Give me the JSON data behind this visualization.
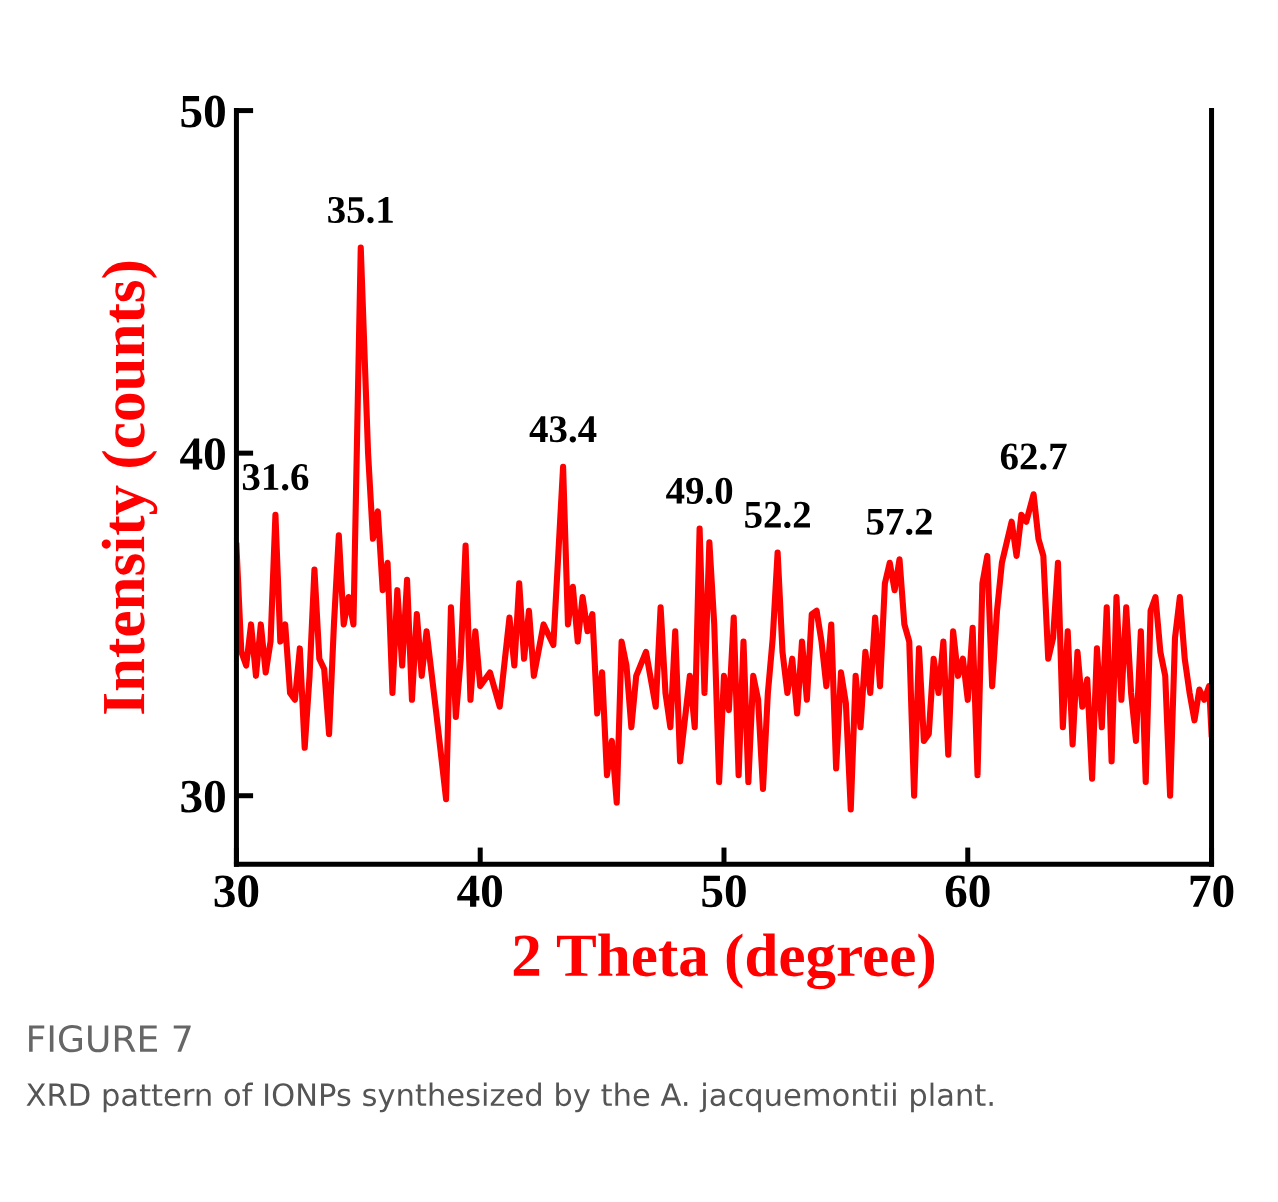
{
  "chart_data": {
    "type": "line",
    "xlabel": "2 Theta (degree)",
    "ylabel": "Intensity (counts)",
    "xlim": [
      30,
      70
    ],
    "ylim": [
      28,
      50
    ],
    "xticks": [
      30,
      40,
      50,
      60,
      70
    ],
    "yticks": [
      30,
      40,
      50
    ],
    "grid": false,
    "marker": "none",
    "line_style": "solid",
    "x": [
      30.0,
      30.2,
      30.4,
      30.6,
      30.8,
      31.0,
      31.2,
      31.4,
      31.6,
      31.8,
      32.0,
      32.2,
      32.4,
      32.6,
      32.8,
      33.0,
      33.2,
      33.4,
      33.6,
      33.8,
      34.0,
      34.2,
      34.4,
      34.6,
      34.8,
      35.1,
      35.4,
      35.6,
      35.8,
      36.0,
      36.2,
      36.4,
      36.6,
      36.8,
      37.0,
      37.2,
      37.4,
      37.6,
      37.8,
      38.0,
      38.2,
      38.6,
      38.8,
      39.0,
      39.2,
      39.4,
      39.6,
      39.8,
      40.0,
      40.4,
      40.8,
      41.2,
      41.4,
      41.6,
      41.8,
      42.0,
      42.2,
      42.6,
      43.0,
      43.4,
      43.6,
      43.8,
      44.0,
      44.2,
      44.4,
      44.6,
      44.8,
      45.0,
      45.2,
      45.4,
      45.6,
      45.8,
      46.0,
      46.2,
      46.4,
      46.8,
      47.2,
      47.4,
      47.6,
      47.8,
      48.0,
      48.2,
      48.6,
      48.8,
      49.0,
      49.2,
      49.4,
      49.6,
      49.8,
      50.0,
      50.2,
      50.4,
      50.6,
      50.8,
      51.0,
      51.2,
      51.4,
      51.6,
      51.8,
      52.0,
      52.2,
      52.4,
      52.6,
      52.8,
      53.0,
      53.2,
      53.4,
      53.6,
      53.8,
      54.0,
      54.2,
      54.4,
      54.6,
      54.8,
      55.0,
      55.2,
      55.4,
      55.6,
      55.8,
      56.0,
      56.2,
      56.4,
      56.6,
      56.8,
      57.0,
      57.2,
      57.4,
      57.6,
      57.8,
      58.0,
      58.2,
      58.4,
      58.6,
      58.8,
      59.0,
      59.2,
      59.4,
      59.6,
      59.8,
      60.0,
      60.2,
      60.4,
      60.6,
      60.8,
      61.0,
      61.2,
      61.4,
      61.8,
      62.0,
      62.2,
      62.4,
      62.7,
      62.9,
      63.1,
      63.3,
      63.5,
      63.7,
      63.9,
      64.1,
      64.3,
      64.5,
      64.7,
      64.9,
      65.1,
      65.3,
      65.5,
      65.7,
      65.9,
      66.1,
      66.3,
      66.5,
      66.7,
      66.9,
      67.1,
      67.3,
      67.5,
      67.7,
      67.9,
      68.1,
      68.3,
      68.5,
      68.7,
      68.9,
      69.1,
      69.3,
      69.5,
      69.7,
      69.9,
      70.0
    ],
    "series": [
      {
        "color": "#ff0000",
        "values": [
          37.3,
          34.2,
          33.8,
          35.0,
          33.5,
          35.0,
          33.6,
          34.5,
          38.2,
          34.5,
          35.0,
          33.0,
          32.8,
          34.3,
          31.4,
          33.5,
          36.6,
          34.0,
          33.7,
          31.8,
          35.0,
          37.6,
          35.0,
          35.8,
          35.0,
          46.0,
          40.0,
          37.5,
          38.3,
          36.0,
          36.8,
          33.0,
          36.0,
          33.8,
          36.3,
          32.8,
          35.3,
          33.5,
          34.8,
          33.6,
          32.4,
          29.9,
          35.5,
          32.3,
          34.0,
          37.3,
          32.8,
          34.8,
          33.2,
          33.6,
          32.6,
          35.2,
          33.8,
          36.2,
          34.0,
          35.4,
          33.5,
          35.0,
          34.4,
          39.6,
          35.0,
          36.1,
          34.5,
          35.8,
          34.8,
          35.3,
          32.4,
          33.6,
          30.6,
          31.6,
          29.8,
          34.5,
          33.8,
          32.0,
          33.5,
          34.2,
          32.6,
          35.5,
          33.0,
          32.0,
          34.8,
          31.0,
          33.5,
          32.0,
          37.8,
          33.0,
          37.4,
          35.0,
          30.4,
          33.5,
          32.5,
          35.2,
          30.6,
          34.5,
          30.4,
          33.5,
          32.8,
          30.2,
          33.0,
          34.6,
          37.1,
          34.2,
          33.0,
          34.0,
          32.4,
          34.5,
          32.8,
          35.3,
          35.4,
          34.5,
          33.2,
          35.0,
          30.8,
          33.6,
          32.7,
          29.6,
          33.5,
          32.0,
          34.2,
          33.0,
          35.2,
          33.2,
          36.2,
          36.8,
          36.0,
          36.9,
          35.0,
          34.5,
          30.0,
          34.3,
          31.6,
          31.8,
          34.0,
          33.0,
          34.5,
          31.2,
          34.8,
          33.5,
          34.0,
          32.8,
          34.9,
          30.6,
          36.2,
          37.0,
          33.2,
          35.4,
          36.8,
          38.0,
          37.0,
          38.2,
          38.0,
          38.8,
          37.5,
          37.0,
          34.0,
          34.6,
          36.8,
          32.0,
          34.8,
          31.5,
          34.2,
          32.6,
          33.4,
          30.5,
          34.3,
          32.0,
          35.5,
          31.0,
          35.8,
          32.8,
          35.5,
          33.0,
          31.6,
          34.8,
          30.4,
          35.4,
          35.8,
          34.2,
          33.5,
          30.0,
          34.6,
          35.8,
          34.0,
          33.0,
          32.2,
          33.1,
          32.8,
          33.2,
          31.8
        ]
      }
    ],
    "annotations": [
      {
        "text": "31.6",
        "x": 31.6,
        "y": 38.2
      },
      {
        "text": "35.1",
        "x": 35.1,
        "y": 46.0
      },
      {
        "text": "43.4",
        "x": 43.4,
        "y": 39.6
      },
      {
        "text": "49.0",
        "x": 49.0,
        "y": 37.8
      },
      {
        "text": "52.2",
        "x": 52.2,
        "y": 37.1
      },
      {
        "text": "57.2",
        "x": 57.2,
        "y": 36.9
      },
      {
        "text": "62.7",
        "x": 62.7,
        "y": 38.8
      },
      "FIGURE 7",
      "XRD pattern of IONPs synthesized by the A. jacquemontii plant."
    ]
  }
}
